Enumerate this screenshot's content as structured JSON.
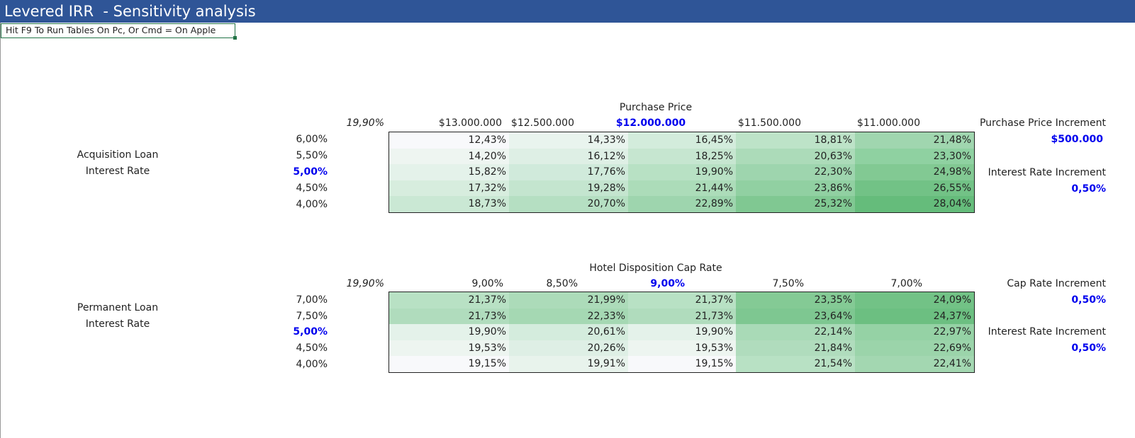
{
  "title": "Levered IRR  - Sensitivity analysis",
  "hint": "Hit F9 To Run Tables On Pc, Or Cmd = On Apple",
  "table1": {
    "header": "Purchase Price",
    "base_value": "19,90%",
    "col_labels": [
      "$13.000.000",
      "$12.500.000",
      "$12.000.000",
      "$11.500.000",
      "$11.000.000"
    ],
    "row_axis_label_line1": "Acquisition Loan",
    "row_axis_label_line2": "Interest Rate",
    "row_labels": [
      "6,00%",
      "5,50%",
      "5,00%",
      "4,50%",
      "4,00%"
    ],
    "cells": [
      [
        "12,43%",
        "14,33%",
        "16,45%",
        "18,81%",
        "21,48%"
      ],
      [
        "14,20%",
        "16,12%",
        "18,25%",
        "20,63%",
        "23,30%"
      ],
      [
        "15,82%",
        "17,76%",
        "19,90%",
        "22,30%",
        "24,98%"
      ],
      [
        "17,32%",
        "19,28%",
        "21,44%",
        "23,86%",
        "26,55%"
      ],
      [
        "18,73%",
        "20,70%",
        "22,89%",
        "25,32%",
        "28,04%"
      ]
    ],
    "shades": [
      [
        "#f8f9fb",
        "#e9f4ee",
        "#d3ecdc",
        "#bde3c8",
        "#a0d6af"
      ],
      [
        "#eef5f1",
        "#deefe5",
        "#c6e6d0",
        "#acdbb9",
        "#8fd1a1"
      ],
      [
        "#e4f2ea",
        "#d0eadb",
        "#b8e1c4",
        "#9ed5ae",
        "#82c993"
      ],
      [
        "#d7edde",
        "#c4e5cf",
        "#acdcb9",
        "#91d0a2",
        "#72c286"
      ],
      [
        "#cae8d4",
        "#b5dfc2",
        "#9ed5ae",
        "#80c892",
        "#65bc7b"
      ]
    ],
    "increments": [
      {
        "label": "Purchase Price Increment",
        "value": "$500.000"
      },
      {
        "label": "Interest Rate Increment",
        "value": "0,50%"
      }
    ]
  },
  "table2": {
    "header": "Hotel Disposition Cap Rate",
    "base_value": "19,90%",
    "col_labels": [
      "9,00%",
      "8,50%",
      "9,00%",
      "7,50%",
      "7,00%"
    ],
    "row_axis_label_line1": "Permanent Loan",
    "row_axis_label_line2": "Interest Rate",
    "row_labels": [
      "7,00%",
      "7,50%",
      "5,00%",
      "4,50%",
      "4,00%"
    ],
    "cells": [
      [
        "21,37%",
        "21,99%",
        "21,37%",
        "23,35%",
        "24,09%"
      ],
      [
        "21,73%",
        "22,33%",
        "21,73%",
        "23,64%",
        "24,37%"
      ],
      [
        "19,90%",
        "20,61%",
        "19,90%",
        "22,14%",
        "22,97%"
      ],
      [
        "19,53%",
        "20,26%",
        "19,53%",
        "21,84%",
        "22,69%"
      ],
      [
        "19,15%",
        "19,91%",
        "19,15%",
        "21,54%",
        "22,41%"
      ]
    ],
    "shades": [
      [
        "#b8e1c4",
        "#acdbb9",
        "#b8e1c4",
        "#84ca95",
        "#72c286"
      ],
      [
        "#b0dcbd",
        "#a5d8b3",
        "#b0dcbd",
        "#7ec791",
        "#6cbf81"
      ],
      [
        "#e4f2ea",
        "#d4ecdd",
        "#e4f2ea",
        "#a9dab7",
        "#95d2a5"
      ],
      [
        "#edf5f0",
        "#deefe5",
        "#edf5f0",
        "#b0dcbd",
        "#9bd4aa"
      ],
      [
        "#f8f9fb",
        "#e8f3ec",
        "#f8f9fb",
        "#b8e1c4",
        "#a3d7b1"
      ]
    ],
    "increments": [
      {
        "label": "Cap Rate Increment",
        "value": "0,50%"
      },
      {
        "label": "Interest Rate Increment",
        "value": "0,50%"
      }
    ]
  }
}
